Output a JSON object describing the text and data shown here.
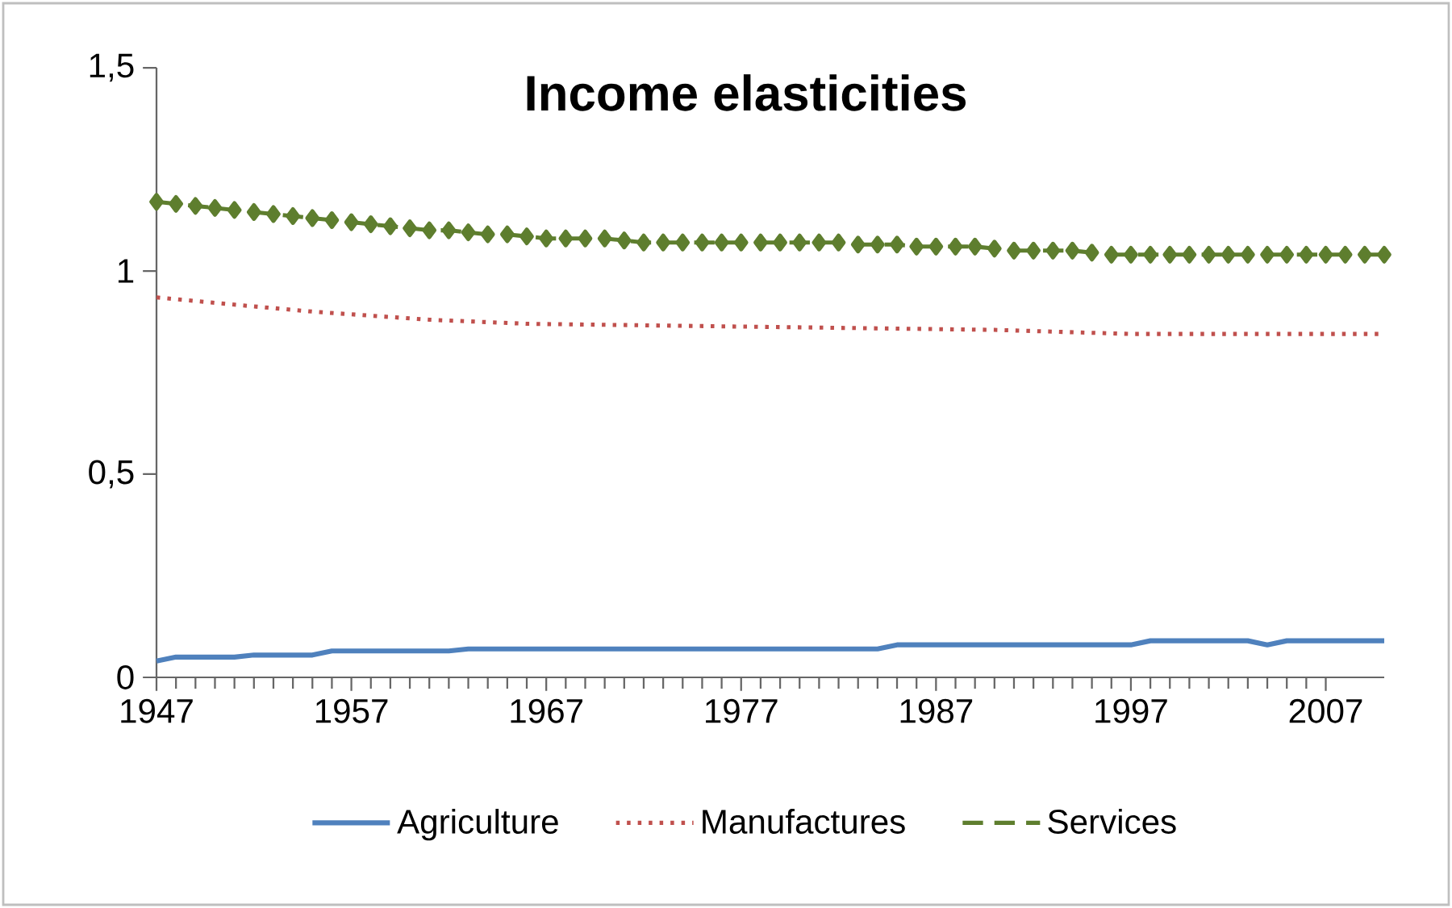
{
  "chart_data": {
    "type": "line",
    "title": "Income elasticities",
    "xlim": [
      1947,
      2010
    ],
    "xticks": [
      1947,
      1957,
      1967,
      1977,
      1987,
      1997,
      2007
    ],
    "ylim": [
      0,
      1.5
    ],
    "yticks": [
      {
        "value": 0,
        "label": "0"
      },
      {
        "value": 0.5,
        "label": "0,5"
      },
      {
        "value": 1,
        "label": "1"
      },
      {
        "value": 1.5,
        "label": "1,5"
      }
    ],
    "legend": "bottom",
    "series": [
      {
        "name": "Agriculture",
        "color": "#4f81bd",
        "line_style": "solid",
        "marker": "none",
        "x": [
          1947,
          1948,
          1951,
          1952,
          1955,
          1956,
          1962,
          1963,
          1984,
          1985,
          1997,
          1998,
          2003,
          2004,
          2005,
          2010
        ],
        "values": [
          0.04,
          0.05,
          0.05,
          0.055,
          0.055,
          0.065,
          0.065,
          0.07,
          0.07,
          0.08,
          0.08,
          0.09,
          0.09,
          0.08,
          0.09,
          0.09
        ]
      },
      {
        "name": "Manufactures",
        "color": "#c0504d",
        "line_style": "dotted",
        "marker": "none",
        "x": [
          1947,
          1949,
          1951,
          1955,
          1958,
          1961,
          1966,
          1982,
          1990,
          1997,
          2010
        ],
        "values": [
          0.935,
          0.926,
          0.917,
          0.9,
          0.89,
          0.88,
          0.87,
          0.86,
          0.855,
          0.845,
          0.845
        ]
      },
      {
        "name": "Services",
        "color": "#5e7e2e",
        "line_style": "dashed",
        "marker": "diamond",
        "x": [
          1947,
          1948,
          1949,
          1950,
          1951,
          1952,
          1953,
          1954,
          1955,
          1956,
          1957,
          1958,
          1959,
          1960,
          1961,
          1962,
          1963,
          1964,
          1965,
          1966,
          1967,
          1968,
          1969,
          1970,
          1971,
          1972,
          1973,
          1974,
          1975,
          1976,
          1977,
          1978,
          1979,
          1980,
          1981,
          1982,
          1983,
          1984,
          1985,
          1986,
          1987,
          1988,
          1989,
          1990,
          1991,
          1992,
          1993,
          1994,
          1995,
          1996,
          1997,
          1998,
          1999,
          2000,
          2001,
          2002,
          2003,
          2004,
          2005,
          2006,
          2007,
          2008,
          2009,
          2010
        ],
        "values": [
          1.17,
          1.165,
          1.16,
          1.155,
          1.15,
          1.145,
          1.14,
          1.135,
          1.13,
          1.125,
          1.12,
          1.115,
          1.11,
          1.105,
          1.1,
          1.1,
          1.095,
          1.09,
          1.09,
          1.085,
          1.08,
          1.08,
          1.08,
          1.08,
          1.075,
          1.07,
          1.07,
          1.07,
          1.07,
          1.07,
          1.07,
          1.07,
          1.07,
          1.07,
          1.07,
          1.07,
          1.065,
          1.065,
          1.065,
          1.06,
          1.06,
          1.06,
          1.06,
          1.055,
          1.05,
          1.05,
          1.05,
          1.05,
          1.045,
          1.04,
          1.04,
          1.04,
          1.04,
          1.04,
          1.04,
          1.04,
          1.04,
          1.04,
          1.04,
          1.04,
          1.04,
          1.04,
          1.04,
          1.04
        ]
      }
    ]
  }
}
